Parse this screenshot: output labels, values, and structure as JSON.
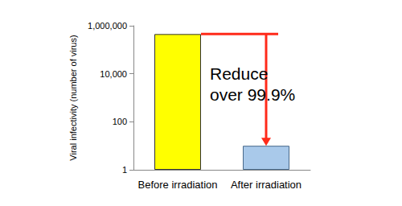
{
  "chart_data": {
    "type": "bar",
    "categories": [
      "Before irradiation",
      "After irradiation"
    ],
    "values": [
      450000,
      10
    ],
    "colors": [
      "#ffff00",
      "#a9c9ea"
    ],
    "ylabel": "Viral infectivity (number of virus)",
    "log": "y",
    "ylim": [
      1,
      1000000
    ],
    "yticks": [
      1,
      100,
      {
        "value": 10000,
        "label": "10,000"
      },
      {
        "value": 1000000,
        "label": "1,000,000"
      }
    ],
    "grid": false,
    "annotation": [
      "Reduce",
      "over 99.9%"
    ]
  }
}
